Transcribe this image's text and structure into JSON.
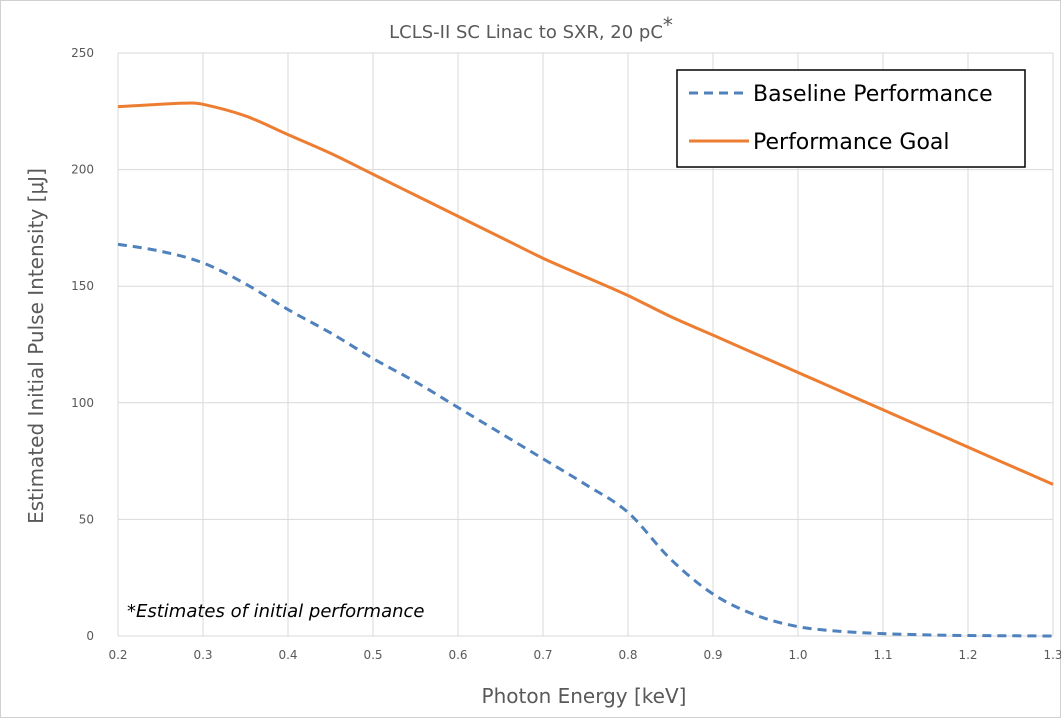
{
  "chart_data": {
    "type": "line",
    "title": "LCLS-II SC Linac to SXR, 20 pC",
    "title_marker": "*",
    "xlabel": "Photon Energy [keV]",
    "ylabel": "Estimated Initial Pulse Intensity [μJ]",
    "xlim": [
      0.2,
      1.3
    ],
    "ylim": [
      0,
      250
    ],
    "x_ticks": [
      "0.2",
      "0.3",
      "0.4",
      "0.5",
      "0.6",
      "0.7",
      "0.8",
      "0.9",
      "1.0",
      "1.1",
      "1.2",
      "1.3"
    ],
    "y_ticks": [
      "0",
      "50",
      "100",
      "150",
      "200",
      "250"
    ],
    "grid": true,
    "legend_position": "top-right",
    "annotation": "*Estimates of initial performance",
    "series": [
      {
        "name": "Baseline Performance",
        "style": "dashed",
        "color": "#4F81BD",
        "x": [
          0.2,
          0.25,
          0.3,
          0.35,
          0.4,
          0.45,
          0.5,
          0.55,
          0.6,
          0.65,
          0.7,
          0.75,
          0.8,
          0.85,
          0.9,
          0.95,
          1.0,
          1.05,
          1.1,
          1.15,
          1.2,
          1.25,
          1.3
        ],
        "y": [
          168,
          165,
          160,
          151,
          140,
          130,
          119,
          109,
          98,
          87,
          76,
          65,
          53,
          33,
          18,
          9,
          4,
          2,
          1,
          0.5,
          0.2,
          0.1,
          0
        ]
      },
      {
        "name": "Performance Goal",
        "style": "solid",
        "color": "#ED7D31",
        "x": [
          0.2,
          0.25,
          0.28,
          0.3,
          0.35,
          0.4,
          0.45,
          0.5,
          0.55,
          0.6,
          0.65,
          0.7,
          0.75,
          0.8,
          0.85,
          0.9,
          0.95,
          1.0,
          1.05,
          1.1,
          1.15,
          1.2,
          1.25,
          1.3
        ],
        "y": [
          227,
          228,
          228.5,
          228,
          223,
          215,
          207,
          198,
          189,
          180,
          171,
          162,
          154,
          146,
          137,
          129,
          121,
          113,
          105,
          97,
          89,
          81,
          73,
          65
        ]
      }
    ]
  }
}
